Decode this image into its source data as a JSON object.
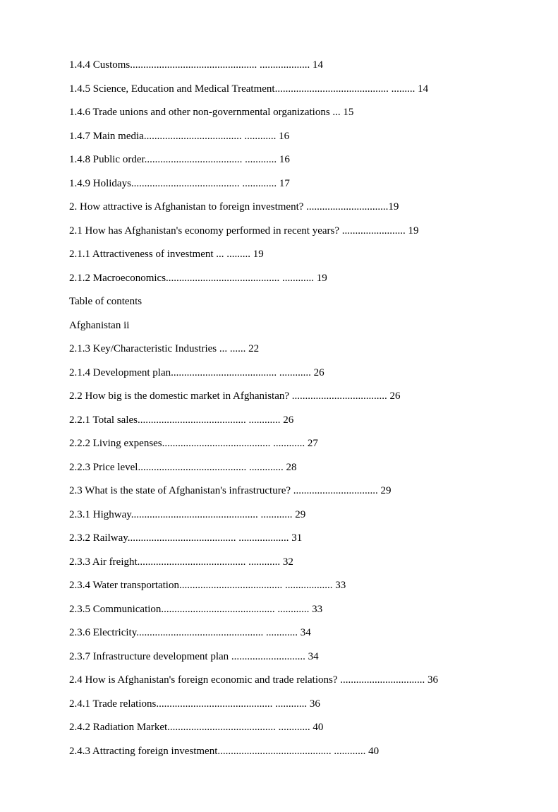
{
  "text_color": "#000000",
  "background_color": "#ffffff",
  "font_family": "Times New Roman",
  "font_size_pt": 12,
  "entries": [
    {
      "label": "1.4.4 Customs",
      "dots": "................................................ ................... 14"
    },
    {
      "label": "1.4.5 Science, Education and Medical Treatment",
      "dots": "........................................... ......... 14"
    },
    {
      "label": "1.4.6 Trade unions and other non-governmental organizations ... 15",
      "dots": ""
    },
    {
      "label": "1.4.7 Main media",
      "dots": "..................................... ............ 16"
    },
    {
      "label": "1.4.8 Public order",
      "dots": "..................................... ............ 16"
    },
    {
      "label": "1.4.9 Holidays",
      "dots": "......................................... ............. 17"
    },
    {
      "label": "2. How attractive is Afghanistan to foreign investment? ",
      "dots": "...............................19"
    },
    {
      "label": "2.1 How has Afghanistan's economy performed in recent years? ",
      "dots": "........................ 19"
    },
    {
      "label": "2.1.1 Attractiveness of investment ... .........  19",
      "dots": ""
    },
    {
      "label": "2.1.2 Macroeconomics",
      "dots": "........................................... ............ 19"
    },
    {
      "label": "Table of contents",
      "dots": ""
    },
    {
      "label": "Afghanistan ii",
      "dots": ""
    },
    {
      "label": "2.1.3 Key/Characteristic Industries ... ......  22",
      "dots": ""
    },
    {
      "label": "2.1.4 Development plan",
      "dots": "........................................ ............ 26"
    },
    {
      "label": "2.2 How big is the domestic market in Afghanistan? ",
      "dots": ".................................... 26"
    },
    {
      "label": "2.2.1 Total sales",
      "dots": "......................................... ............ 26"
    },
    {
      "label": "2.2.2 Living expenses",
      "dots": "......................................... ............ 27"
    },
    {
      "label": "2.2.3 Price level",
      "dots": "......................................... ............. 28"
    },
    {
      "label": "2.3 What is the state of Afghanistan's infrastructure? ",
      "dots": "................................ 29"
    },
    {
      "label": "2.3.1 Highway",
      "dots": "................................................ ............ 29"
    },
    {
      "label": "2.3.2 Railway",
      "dots": "......................................... ................... 31"
    },
    {
      "label": "2.3.3 Air freight",
      "dots": "......................................... ............ 32"
    },
    {
      "label": "2.3.4 Water transportation",
      "dots": "....................................... .................. 33"
    },
    {
      "label": "2.3.5 Communication",
      "dots": "........................................... ............ 33"
    },
    {
      "label": "2.3.6 Electricity",
      "dots": "................................................ ............ 34"
    },
    {
      "label": "2.3.7 Infrastructure development plan ",
      "dots": "............................ 34"
    },
    {
      "label": "2.4 How is Afghanistan's foreign economic and trade relations? ",
      "dots": "................................ 36"
    },
    {
      "label": "2.4.1 Trade relations",
      "dots": "............................................ ............ 36"
    },
    {
      "label": "2.4.2 Radiation Market",
      "dots": "......................................... ............ 40"
    },
    {
      "label": "2.4.3 Attracting foreign investment",
      "dots": "........................................... ............ 40"
    }
  ]
}
